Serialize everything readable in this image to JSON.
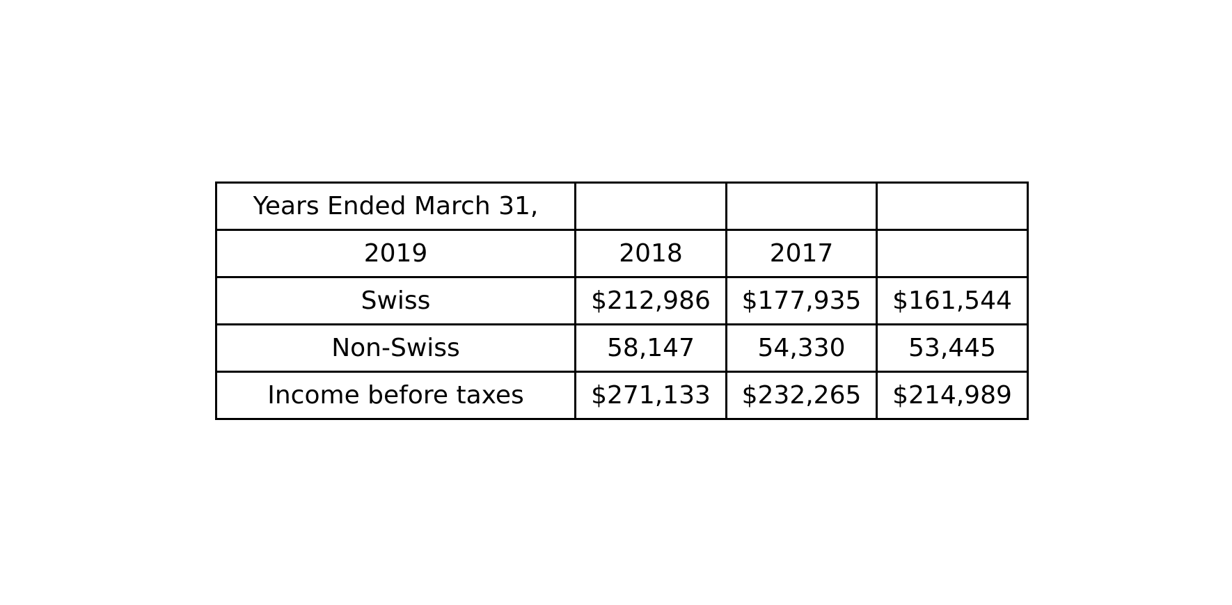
{
  "chart_data": {
    "type": "table",
    "rows": [
      [
        "Years Ended March 31,",
        "",
        "",
        ""
      ],
      [
        "2019",
        "2018",
        "2017",
        ""
      ],
      [
        "Swiss",
        "$212,986",
        "$177,935",
        "$161,544"
      ],
      [
        "Non-Swiss",
        "58,147",
        "54,330",
        "53,445"
      ],
      [
        "Income before taxes",
        "$271,133",
        "$232,265",
        "$214,989"
      ]
    ],
    "border_color": "#000000",
    "text_color": "#000000",
    "background": "#ffffff"
  }
}
